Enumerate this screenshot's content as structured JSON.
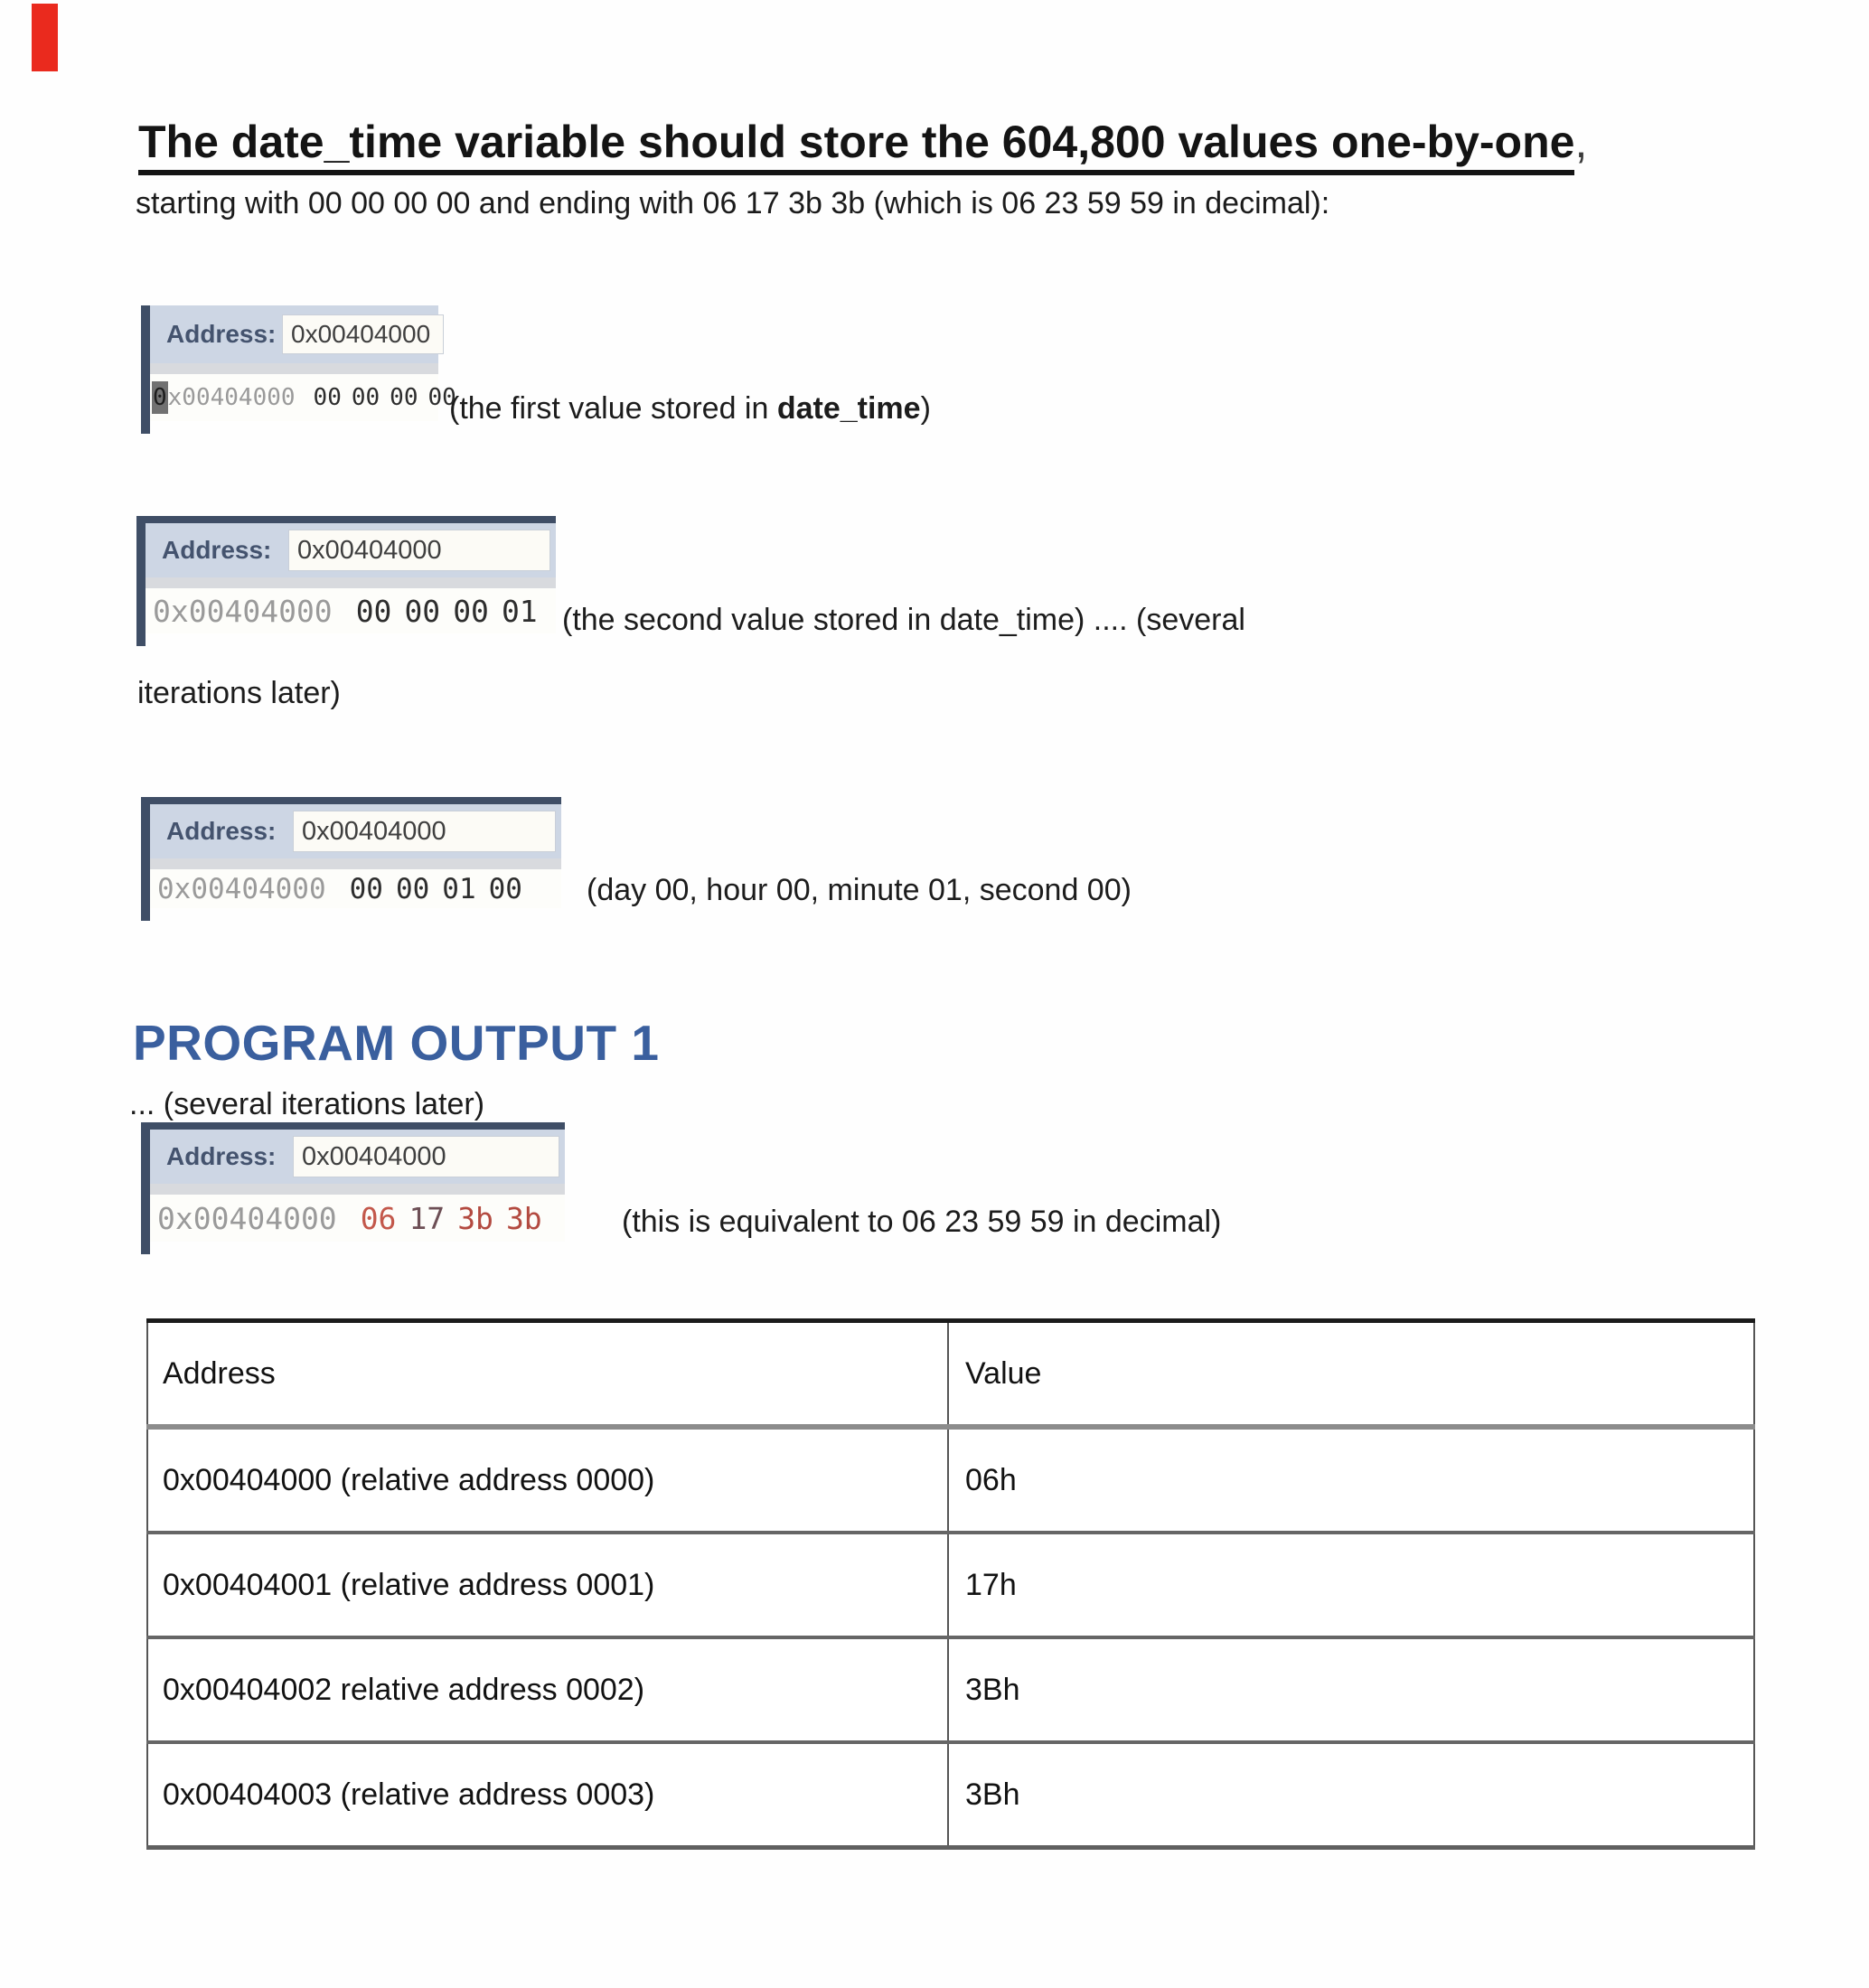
{
  "page": {
    "title_underlined": "The date_time variable should store the 604,800 values one-by-one",
    "title_trailing_comma": ",",
    "subtitle": "starting with 00 00 00 00 and ending with 06 17 3b 3b (which is 06 23 59 59 in decimal):",
    "continuation_line": "iterations later)",
    "section_heading": "PROGRAM OUTPUT 1",
    "pre_viewer_line": "... (several iterations later)"
  },
  "memory_viewers": [
    {
      "address_label": "Address:",
      "address_value": "0x00404000",
      "row_address_cursor": "0",
      "row_address_rest": "x00404000",
      "bytes": [
        "00",
        "00",
        "00",
        "00"
      ],
      "caption_prefix": "(the first value stored in ",
      "caption_bold": "date_time",
      "caption_suffix": ")"
    },
    {
      "address_label": "Address:",
      "address_value": "0x00404000",
      "row_address": "0x00404000",
      "bytes": [
        "00",
        "00",
        "00",
        "01"
      ],
      "caption": "(the second value stored in date_time) .... (several"
    },
    {
      "address_label": "Address:",
      "address_value": "0x00404000",
      "row_address": "0x00404000",
      "bytes": [
        "00",
        "00",
        "01",
        "00"
      ],
      "caption": "(day 00, hour 00, minute 01, second 00)"
    },
    {
      "address_label": "Address:",
      "address_value": "0x00404000",
      "row_address": "0x00404000",
      "bytes": [
        "06",
        "17",
        "3b",
        "3b"
      ],
      "caption": "(this is equivalent to 06 23 59 59 in decimal)"
    }
  ],
  "table": {
    "headers": [
      "Address",
      "Value"
    ],
    "rows": [
      [
        "0x00404000 (relative address 0000)",
        "06h"
      ],
      [
        "0x00404001 (relative address 0001)",
        "17h"
      ],
      [
        "0x00404002 relative address 0002)",
        "3Bh"
      ],
      [
        "0x00404003 (relative address 0003)",
        "3Bh"
      ]
    ]
  },
  "colors": {
    "heading_blue": "#3a5f9e",
    "viewer_chrome_navy": "#3f4e66",
    "viewer_header_bg": "#cdd6e4",
    "hex_address_gray": "#9a9a9a",
    "hex_value_dark": "#2d2d2d",
    "hex_value_red_06": "#c3584b",
    "hex_value_dark_red_17": "#6d4f55",
    "hex_value_red_3b": "#b34a40",
    "red_marker": "#ea2a1e"
  }
}
